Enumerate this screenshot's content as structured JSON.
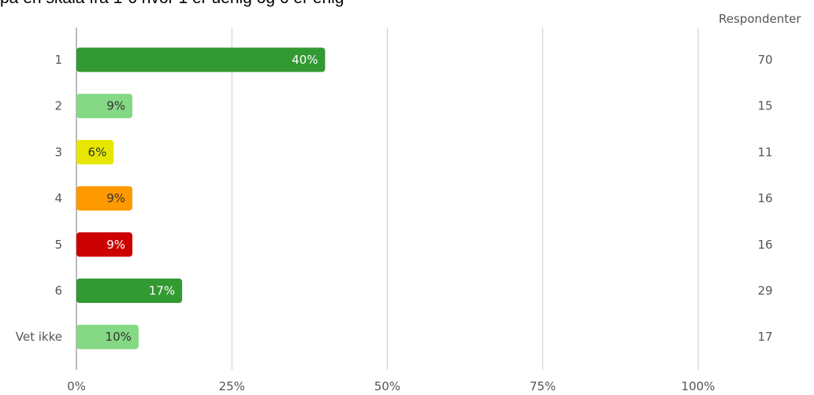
{
  "header": {
    "title": "på en skala fra 1-6 hvor 1 er uenig og 6 er enig",
    "respondents_label": "Respondenter"
  },
  "chart_data": {
    "type": "bar",
    "orientation": "horizontal",
    "title": "på en skala fra 1-6 hvor 1 er uenig og 6 er enig",
    "categories": [
      "1",
      "2",
      "3",
      "4",
      "5",
      "6",
      "Vet ikke"
    ],
    "values": [
      40,
      9,
      6,
      9,
      9,
      17,
      10
    ],
    "value_labels": [
      "40%",
      "9%",
      "6%",
      "9%",
      "9%",
      "17%",
      "10%"
    ],
    "respondents": [
      70,
      15,
      11,
      16,
      16,
      29,
      17
    ],
    "bar_colors": [
      "#339933",
      "#85d985",
      "#e6e600",
      "#ff9900",
      "#cc0000",
      "#339933",
      "#85d985"
    ],
    "label_colors": [
      "#ffffff",
      "#333333",
      "#333333",
      "#333333",
      "#ffffff",
      "#ffffff",
      "#333333"
    ],
    "xlim": [
      0,
      100
    ],
    "x_ticks": [
      0,
      25,
      50,
      75,
      100
    ],
    "x_tick_labels": [
      "0%",
      "25%",
      "50%",
      "75%",
      "100%"
    ],
    "grid": true
  }
}
